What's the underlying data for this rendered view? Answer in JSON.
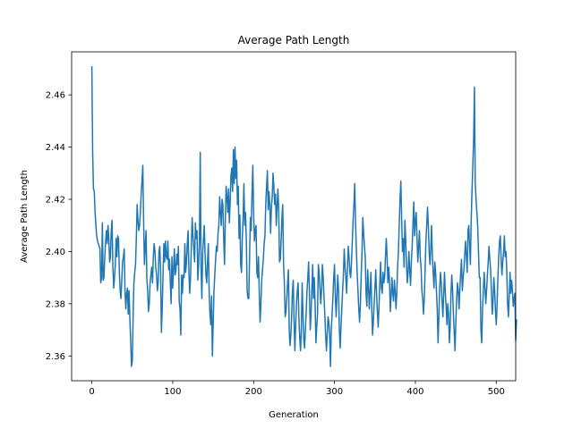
{
  "chart_data": {
    "type": "line",
    "title": "Average Path Length",
    "xlabel": "Generation",
    "ylabel": "Average Path Length",
    "xlim": [
      -25,
      524
    ],
    "ylim": [
      2.3505,
      2.4765
    ],
    "xticks": [
      0,
      100,
      200,
      300,
      400,
      500
    ],
    "xtick_labels": [
      "0",
      "100",
      "200",
      "300",
      "400",
      "500"
    ],
    "yticks": [
      2.36,
      2.38,
      2.4,
      2.42,
      2.44,
      2.46
    ],
    "ytick_labels": [
      "2.36",
      "2.38",
      "2.40",
      "2.42",
      "2.44",
      "2.46"
    ],
    "grid": false,
    "series": [
      {
        "color": "#1f77b4",
        "x_start": 0,
        "x_step": 1,
        "values": [
          2.471,
          2.438,
          2.424,
          2.423,
          2.415,
          2.41,
          2.406,
          2.404,
          2.403,
          2.402,
          2.401,
          2.388,
          2.39,
          2.411,
          2.389,
          2.39,
          2.398,
          2.404,
          2.408,
          2.403,
          2.41,
          2.405,
          2.396,
          2.398,
          2.408,
          2.412,
          2.394,
          2.386,
          2.39,
          2.395,
          2.405,
          2.398,
          2.406,
          2.405,
          2.392,
          2.385,
          2.382,
          2.389,
          2.396,
          2.398,
          2.401,
          2.385,
          2.378,
          2.384,
          2.386,
          2.376,
          2.385,
          2.374,
          2.366,
          2.356,
          2.358,
          2.375,
          2.388,
          2.392,
          2.395,
          2.405,
          2.418,
          2.412,
          2.408,
          2.41,
          2.415,
          2.422,
          2.427,
          2.433,
          2.412,
          2.395,
          2.402,
          2.408,
          2.39,
          2.385,
          2.377,
          2.38,
          2.388,
          2.391,
          2.394,
          2.388,
          2.398,
          2.403,
          2.4,
          2.394,
          2.391,
          2.385,
          2.388,
          2.4,
          2.402,
          2.393,
          2.369,
          2.378,
          2.391,
          2.403,
          2.396,
          2.404,
          2.398,
          2.397,
          2.404,
          2.393,
          2.397,
          2.388,
          2.38,
          2.398,
          2.386,
          2.393,
          2.401,
          2.391,
          2.393,
          2.399,
          2.395,
          2.402,
          2.381,
          2.378,
          2.368,
          2.391,
          2.384,
          2.391,
          2.39,
          2.403,
          2.392,
          2.396,
          2.403,
          2.408,
          2.392,
          2.384,
          2.39,
          2.402,
          2.413,
          2.406,
          2.401,
          2.396,
          2.411,
          2.405,
          2.408,
          2.389,
          2.395,
          2.404,
          2.438,
          2.394,
          2.382,
          2.399,
          2.405,
          2.41,
          2.399,
          2.391,
          2.388,
          2.396,
          2.403,
          2.385,
          2.376,
          2.372,
          2.383,
          2.36,
          2.372,
          2.385,
          2.391,
          2.397,
          2.402,
          2.4,
          2.407,
          2.41,
          2.421,
          2.415,
          2.41,
          2.42,
          2.418,
          2.405,
          2.395,
          2.412,
          2.425,
          2.421,
          2.415,
          2.424,
          2.411,
          2.419,
          2.429,
          2.432,
          2.423,
          2.439,
          2.426,
          2.44,
          2.428,
          2.435,
          2.418,
          2.425,
          2.405,
          2.414,
          2.395,
          2.392,
          2.405,
          2.413,
          2.426,
          2.41,
          2.415,
          2.404,
          2.385,
          2.382,
          2.382,
          2.398,
          2.413,
          2.408,
          2.422,
          2.433,
          2.415,
          2.404,
          2.408,
          2.41,
          2.392,
          2.39,
          2.398,
          2.384,
          2.373,
          2.38,
          2.389,
          2.393,
          2.397,
          2.403,
          2.406,
          2.418,
          2.425,
          2.431,
          2.416,
          2.423,
          2.418,
          2.407,
          2.417,
          2.421,
          2.43,
          2.425,
          2.418,
          2.422,
          2.41,
          2.417,
          2.424,
          2.416,
          2.396,
          2.397,
          2.404,
          2.413,
          2.418,
          2.395,
          2.388,
          2.375,
          2.377,
          2.382,
          2.388,
          2.393,
          2.37,
          2.364,
          2.368,
          2.375,
          2.385,
          2.389,
          2.373,
          2.362,
          2.372,
          2.38,
          2.385,
          2.388,
          2.374,
          2.367,
          2.362,
          2.37,
          2.388,
          2.376,
          2.366,
          2.363,
          2.37,
          2.377,
          2.385,
          2.39,
          2.396,
          2.384,
          2.37,
          2.376,
          2.386,
          2.395,
          2.382,
          2.39,
          2.38,
          2.365,
          2.371,
          2.376,
          2.395,
          2.392,
          2.386,
          2.38,
          2.385,
          2.395,
          2.39,
          2.383,
          2.376,
          2.368,
          2.362,
          2.368,
          2.375,
          2.373,
          2.368,
          2.356,
          2.37,
          2.376,
          2.382,
          2.39,
          2.395,
          2.383,
          2.375,
          2.383,
          2.391,
          2.385,
          2.37,
          2.363,
          2.371,
          2.378,
          2.385,
          2.391,
          2.401,
          2.394,
          2.39,
          2.384,
          2.394,
          2.402,
          2.398,
          2.392,
          2.39,
          2.396,
          2.404,
          2.412,
          2.418,
          2.426,
          2.411,
          2.401,
          2.392,
          2.385,
          2.378,
          2.373,
          2.38,
          2.391,
          2.4,
          2.413,
          2.407,
          2.402,
          2.398,
          2.384,
          2.379,
          2.393,
          2.387,
          2.378,
          2.385,
          2.392,
          2.379,
          2.368,
          2.373,
          2.38,
          2.386,
          2.393,
          2.384,
          2.377,
          2.371,
          2.379,
          2.388,
          2.396,
          2.386,
          2.384,
          2.392,
          2.388,
          2.39,
          2.398,
          2.405,
          2.398,
          2.388,
          2.394,
          2.389,
          2.377,
          2.383,
          2.39,
          2.384,
          2.381,
          2.389,
          2.385,
          2.378,
          2.384,
          2.394,
          2.4,
          2.41,
          2.42,
          2.427,
          2.413,
          2.4,
          2.405,
          2.394,
          2.412,
          2.405,
          2.395,
          2.388,
          2.392,
          2.4,
          2.393,
          2.387,
          2.396,
          2.402,
          2.411,
          2.419,
          2.406,
          2.412,
          2.415,
          2.405,
          2.396,
          2.402,
          2.408,
          2.398,
          2.394,
          2.385,
          2.382,
          2.376,
          2.382,
          2.393,
          2.404,
          2.41,
          2.417,
          2.41,
          2.4,
          2.395,
          2.401,
          2.41,
          2.398,
          2.392,
          2.386,
          2.396,
          2.392,
          2.385,
          2.378,
          2.365,
          2.375,
          2.386,
          2.392,
          2.388,
          2.381,
          2.375,
          2.384,
          2.392,
          2.384,
          2.379,
          2.372,
          2.38,
          2.376,
          2.365,
          2.371,
          2.384,
          2.391,
          2.385,
          2.376,
          2.369,
          2.362,
          2.373,
          2.382,
          2.388,
          2.385,
          2.378,
          2.386,
          2.392,
          2.397,
          2.385,
          2.39,
          2.393,
          2.399,
          2.404,
          2.398,
          2.392,
          2.408,
          2.41,
          2.402,
          2.395,
          2.412,
          2.423,
          2.433,
          2.443,
          2.463,
          2.426,
          2.42,
          2.415,
          2.41,
          2.4,
          2.39,
          2.39,
          2.37,
          2.365,
          2.378,
          2.385,
          2.392,
          2.386,
          2.38,
          2.385,
          2.391,
          2.396,
          2.402,
          2.397,
          2.393,
          2.385,
          2.376,
          2.381,
          2.39,
          2.385,
          2.377,
          2.372,
          2.38,
          2.39,
          2.398,
          2.404,
          2.406,
          2.397,
          2.391,
          2.396,
          2.4,
          2.406,
          2.398,
          2.4,
          2.392,
          2.38,
          2.375,
          2.383,
          2.392,
          2.384,
          2.389,
          2.385,
          2.379,
          2.382,
          2.384,
          2.366,
          2.374
        ]
      }
    ]
  }
}
